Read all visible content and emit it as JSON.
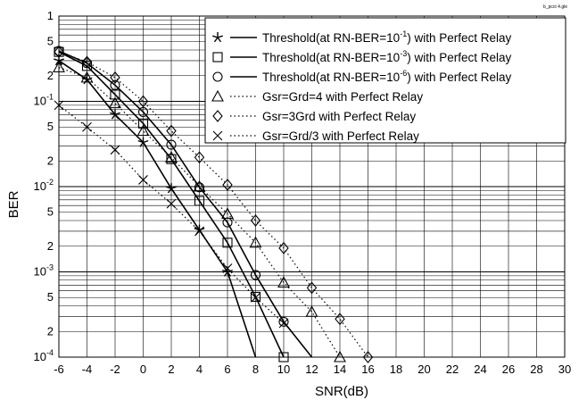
{
  "chart_data": {
    "type": "line",
    "file_tag": "b_pcct 4.gle",
    "xlabel": "SNR(dB)",
    "ylabel": "BER",
    "xlim": [
      -6,
      30
    ],
    "ylim": [
      0.0001,
      1
    ],
    "y_scale": "log",
    "grid": true,
    "legend_position": "top-right",
    "x_ticks": [
      -6,
      -4,
      -2,
      0,
      2,
      4,
      6,
      8,
      10,
      12,
      14,
      16,
      18,
      20,
      22,
      24,
      26,
      28,
      30
    ],
    "y_ticks": [
      {
        "value": 1,
        "mant": "1",
        "exp": ""
      },
      {
        "value": 0.5,
        "mant": "5",
        "exp": ""
      },
      {
        "value": 0.2,
        "mant": "2",
        "exp": ""
      },
      {
        "value": 0.1,
        "mant": "10",
        "exp": "-1"
      },
      {
        "value": 0.05,
        "mant": "5",
        "exp": ""
      },
      {
        "value": 0.02,
        "mant": "2",
        "exp": ""
      },
      {
        "value": 0.01,
        "mant": "10",
        "exp": "-2"
      },
      {
        "value": 0.005,
        "mant": "5",
        "exp": ""
      },
      {
        "value": 0.002,
        "mant": "2",
        "exp": ""
      },
      {
        "value": 0.001,
        "mant": "10",
        "exp": "-3"
      },
      {
        "value": 0.0005,
        "mant": "5",
        "exp": ""
      },
      {
        "value": 0.0002,
        "mant": "2",
        "exp": ""
      },
      {
        "value": 0.0001,
        "mant": "10",
        "exp": "-4"
      }
    ],
    "series": [
      {
        "marker": "star",
        "line": "solid",
        "label": {
          "pre": "Threshold(at RN-BER=10",
          "sup": "-1",
          "post": ") with Perfect Relay"
        },
        "x": [
          -6,
          -4,
          -2,
          0,
          2,
          4,
          6,
          8
        ],
        "y": [
          0.3,
          0.18,
          0.07,
          0.033,
          0.0095,
          0.0031,
          0.001,
          0.0001
        ]
      },
      {
        "marker": "square",
        "line": "solid",
        "label": {
          "pre": "Threshold(at RN-BER=10",
          "sup": "-3",
          "post": ") with Perfect Relay"
        },
        "x": [
          -6,
          -4,
          -2,
          0,
          2,
          4,
          6,
          8,
          10
        ],
        "y": [
          0.38,
          0.26,
          0.12,
          0.055,
          0.021,
          0.0068,
          0.0022,
          0.00051,
          0.0001
        ]
      },
      {
        "marker": "circle",
        "line": "solid",
        "label": {
          "pre": "Threshold(at RN-BER=10",
          "sup": "-6",
          "post": ") with Perfect Relay"
        },
        "x": [
          -6,
          -4,
          -2,
          0,
          2,
          4,
          6,
          8,
          10,
          12
        ],
        "y": [
          0.39,
          0.28,
          0.155,
          0.075,
          0.031,
          0.0098,
          0.0038,
          0.00092,
          0.00026,
          0.0001
        ]
      },
      {
        "marker": "triangle",
        "line": "dotted",
        "label": {
          "pre": "Gsr=Grd=4 with Perfect Relay",
          "sup": "",
          "post": ""
        },
        "x": [
          -6,
          -4,
          -2,
          0,
          2,
          4,
          6,
          8,
          10,
          12,
          14
        ],
        "y": [
          0.25,
          0.19,
          0.095,
          0.045,
          0.022,
          0.01,
          0.0048,
          0.0022,
          0.00075,
          0.00034,
          0.0001
        ]
      },
      {
        "marker": "diamond",
        "line": "dotted",
        "label": {
          "pre": "Gsr=3Grd with Perfect Relay",
          "sup": "",
          "post": ""
        },
        "x": [
          -6,
          -4,
          -2,
          0,
          2,
          4,
          6,
          8,
          10,
          12,
          14,
          16
        ],
        "y": [
          0.38,
          0.29,
          0.19,
          0.1,
          0.045,
          0.022,
          0.0105,
          0.004,
          0.0019,
          0.00065,
          0.00028,
          0.0001
        ]
      },
      {
        "marker": "x",
        "line": "dotted",
        "label": {
          "pre": "Gsr=Grd/3 with Perfect Relay",
          "sup": "",
          "post": ""
        },
        "x": [
          -6,
          -4,
          -2,
          0,
          2,
          4,
          6,
          8,
          10
        ],
        "y": [
          0.09,
          0.05,
          0.027,
          0.012,
          0.0063,
          0.003,
          0.0011,
          0.0005,
          0.00025
        ]
      }
    ]
  }
}
